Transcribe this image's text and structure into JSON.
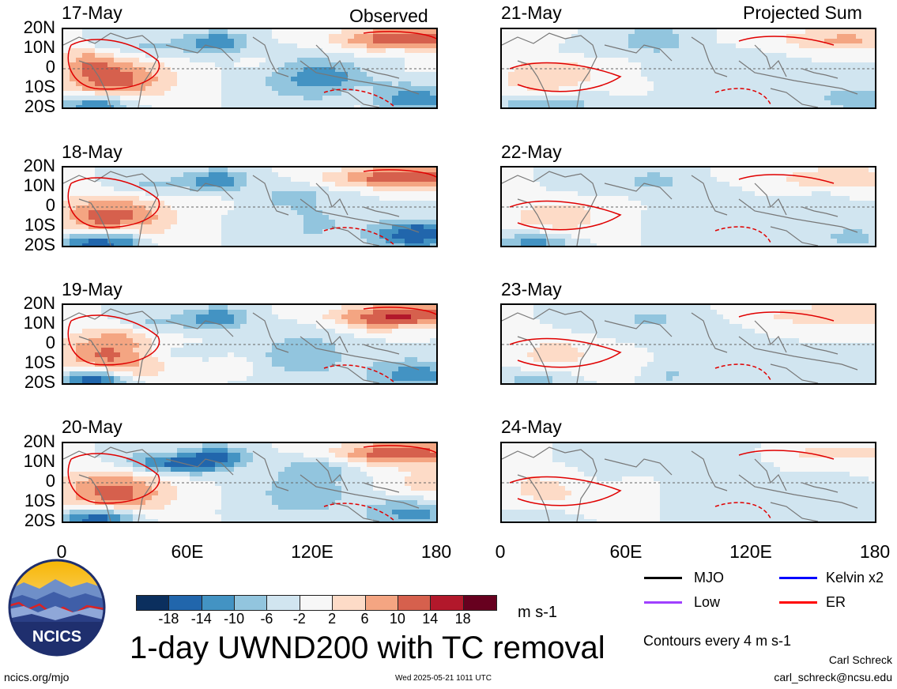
{
  "columns": {
    "observed_label": "Observed",
    "projected_label": "Projected Sum"
  },
  "panels_left": [
    "17-May",
    "18-May",
    "19-May",
    "20-May"
  ],
  "panels_right": [
    "21-May",
    "22-May",
    "23-May",
    "24-May"
  ],
  "lat_labels": [
    "20N",
    "10N",
    "0",
    "10S",
    "20S"
  ],
  "lon_labels": [
    "0",
    "60E",
    "120E",
    "180"
  ],
  "colorbar": {
    "ticks": [
      "-18",
      "-14",
      "-10",
      "-6",
      "-2",
      "2",
      "6",
      "10",
      "14",
      "18"
    ],
    "units": "m s-1",
    "colors": [
      "#0b2f5e",
      "#2166ac",
      "#4393c3",
      "#92c5de",
      "#d1e5f0",
      "#f7f7f7",
      "#fddbc7",
      "#f4a582",
      "#d6604d",
      "#b2182b",
      "#67001f"
    ]
  },
  "legend": {
    "items": [
      {
        "label": "MJO",
        "color": "#000000"
      },
      {
        "label": "Kelvin x2",
        "color": "#0000ff"
      },
      {
        "label": "Low",
        "color": "#a040ff"
      },
      {
        "label": "ER",
        "color": "#ff0000"
      }
    ],
    "contour_note": "Contours every 4 m s-1"
  },
  "title": "1-day UWND200 with TC removal",
  "logo_text": "NCICS",
  "footer": {
    "url": "ncics.org/mjo",
    "timestamp": "Wed 2025-05-21 1011 UTC",
    "author": "Carl Schreck",
    "email": "carl_schreck@ncsu.edu"
  }
}
